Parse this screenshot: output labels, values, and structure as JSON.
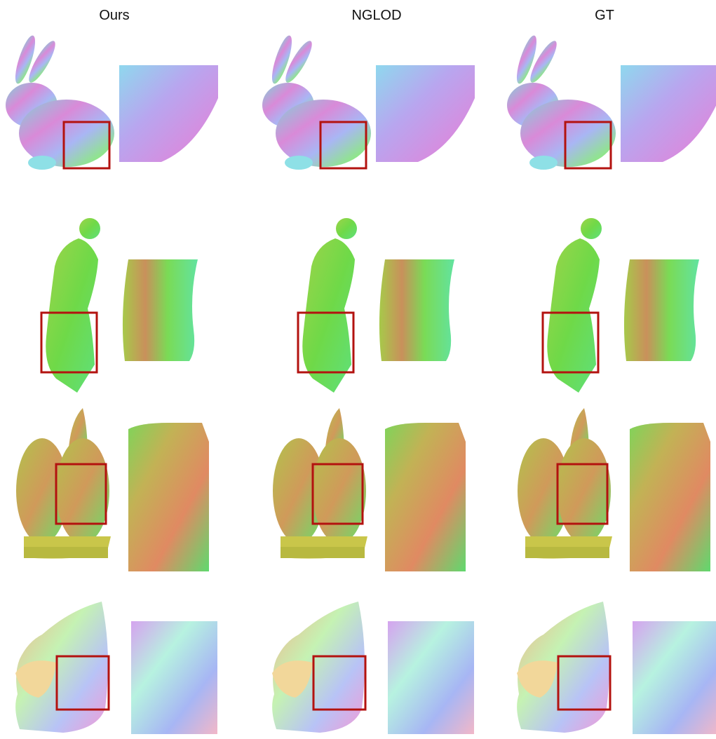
{
  "columns": [
    "Ours",
    "NGLOD",
    "GT"
  ]
}
